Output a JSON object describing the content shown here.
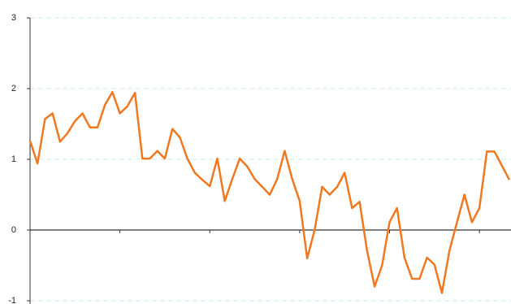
{
  "chart_data": {
    "type": "line",
    "values": [
      1.26,
      0.94,
      1.57,
      1.65,
      1.25,
      1.37,
      1.54,
      1.65,
      1.45,
      1.45,
      1.77,
      1.95,
      1.65,
      1.75,
      1.94,
      1.01,
      1.01,
      1.12,
      1.01,
      1.43,
      1.31,
      1.01,
      0.81,
      0.71,
      0.62,
      1.01,
      0.41,
      0.72,
      1.01,
      0.9,
      0.72,
      0.61,
      0.5,
      0.72,
      1.12,
      0.72,
      0.41,
      -0.4,
      0.0,
      0.61,
      0.5,
      0.61,
      0.81,
      0.31,
      0.4,
      -0.29,
      -0.8,
      -0.5,
      0.11,
      0.31,
      -0.39,
      -0.69,
      -0.69,
      -0.39,
      -0.49,
      -0.89,
      -0.29,
      0.11,
      0.5,
      0.11,
      0.31,
      1.11,
      1.11,
      0.91,
      0.71
    ],
    "color": "#f07820",
    "ylim": [
      -1,
      3
    ],
    "yticks": [
      -1,
      0,
      1,
      2,
      3
    ],
    "grid": true
  }
}
